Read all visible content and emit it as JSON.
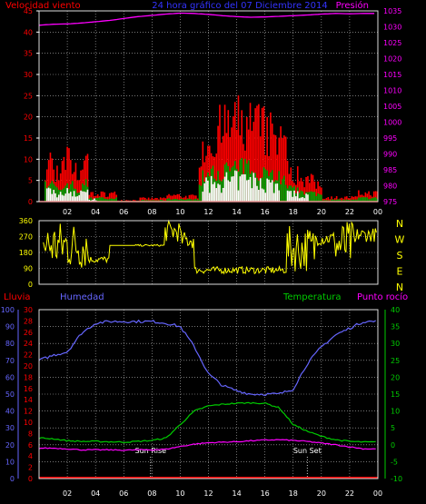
{
  "chart_data": [
    {
      "type": "bar",
      "title": "24 hora gráfico del 07 Diciembre 2014",
      "left_label": "Velocidad viento",
      "right_label": "Presión",
      "x_ticks": [
        "02",
        "04",
        "06",
        "08",
        "10",
        "12",
        "14",
        "16",
        "18",
        "20",
        "22",
        "00"
      ],
      "ylim_left": [
        0,
        45
      ],
      "y_ticks_left": [
        0,
        5,
        10,
        15,
        20,
        25,
        30,
        35,
        40,
        45
      ],
      "ylim_right": [
        975,
        1035
      ],
      "y_ticks_right": [
        975,
        980,
        985,
        990,
        995,
        1000,
        1005,
        1010,
        1015,
        1020,
        1025,
        1030,
        1035
      ],
      "pressure_hourly": [
        1030.5,
        1030.8,
        1030.9,
        1031.2,
        1031.6,
        1032.0,
        1032.6,
        1033.2,
        1033.6,
        1034.0,
        1034.3,
        1034.2,
        1033.9,
        1033.5,
        1033.2,
        1033.0,
        1033.1,
        1033.3,
        1033.5,
        1033.7,
        1034.0,
        1034.2,
        1034.1,
        1034.2
      ],
      "colors": {
        "gust": "#ff0000",
        "wind": "#00a000",
        "calm": "#ffffff",
        "pressure": "#ff00ff"
      }
    },
    {
      "type": "line",
      "y_ticks": [
        0,
        90,
        180,
        270,
        360
      ],
      "ylim": [
        0,
        360
      ],
      "compass": [
        "N",
        "W",
        "S",
        "E",
        "N"
      ],
      "direction_color": "#ffff00"
    },
    {
      "type": "line",
      "labels": {
        "rain": "Lluvia",
        "humidity": "Humedad",
        "temperature": "Temperatura",
        "dew_point": "Punto rocío"
      },
      "rain_ticks": [
        0,
        2,
        4,
        6,
        8,
        10,
        12,
        14,
        16,
        18,
        20,
        22,
        24,
        26,
        28,
        30
      ],
      "humidity_ticks": [
        0,
        10,
        20,
        30,
        40,
        50,
        60,
        70,
        80,
        90,
        100
      ],
      "temp_ticks": [
        -10,
        -5,
        0,
        5,
        10,
        15,
        20,
        25,
        30,
        35,
        40
      ],
      "ylim_temp": [
        -10,
        40
      ],
      "ylim_humidity": [
        0,
        100
      ],
      "annotations": [
        "Sun Rise",
        "Sun Set"
      ],
      "humidity_hourly": [
        70,
        73,
        75,
        86,
        92,
        93,
        93,
        93,
        93,
        92,
        90,
        78,
        62,
        55,
        52,
        50,
        50,
        50,
        53,
        68,
        78,
        85,
        89,
        93
      ],
      "temperature_hourly": [
        2.0,
        1.8,
        1.2,
        1.0,
        1.0,
        0.9,
        0.8,
        1.0,
        1.3,
        2.0,
        6.0,
        10.0,
        11.5,
        12.0,
        12.3,
        12.4,
        12.3,
        11.0,
        6.0,
        4.0,
        2.5,
        1.5,
        1.0,
        0.8
      ],
      "dew_point_hourly": [
        -1.0,
        -1.0,
        -1.2,
        -1.5,
        -1.5,
        -1.5,
        -1.6,
        -1.5,
        -1.5,
        -1.3,
        -0.5,
        0.2,
        0.6,
        0.8,
        0.9,
        1.2,
        1.4,
        1.5,
        1.3,
        1.0,
        0.5,
        0.0,
        -0.6,
        -1.2
      ],
      "rain_values": [
        0
      ],
      "colors": {
        "rain": "#ff0000",
        "humidity": "#6666ff",
        "temperature": "#00cc00",
        "dew_point": "#ff00ff"
      }
    }
  ]
}
